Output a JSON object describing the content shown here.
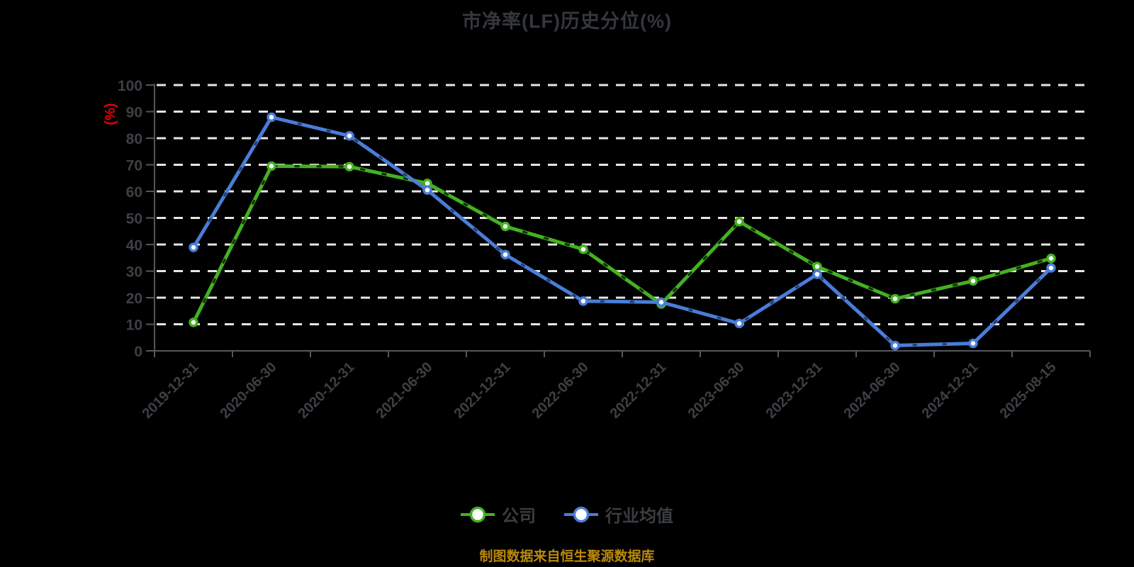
{
  "page": {
    "background_color": "#000000"
  },
  "chart": {
    "title": "市净率(LF)历史分位(%)",
    "title_color": "#34373c",
    "footer_note": "制图数据来自恒生聚源数据库",
    "footer_color": "#b9890e"
  },
  "chart_data": {
    "type": "line",
    "title": "市净率(LF)历史分位(%)",
    "xlabel": "",
    "ylabel": "(%)",
    "ylabel_color": "#e60000",
    "ylim": [
      0,
      100
    ],
    "yticks": [
      0,
      10,
      20,
      30,
      40,
      50,
      60,
      70,
      80,
      90,
      100
    ],
    "grid": "horizontal-dashed-white",
    "gridline_color": "#e6e6e6",
    "axis_color": "#55585b",
    "tick_label_color": "#3d4044",
    "legend_position": "bottom",
    "marker": "white-filled-circle",
    "categories": [
      "2019-12-31",
      "2020-06-30",
      "2020-12-31",
      "2021-06-30",
      "2021-12-31",
      "2022-06-30",
      "2022-12-31",
      "2023-06-30",
      "2023-12-31",
      "2024-06-30",
      "2024-12-31",
      "2025-08-15"
    ],
    "series": [
      {
        "name": "公司",
        "color": "#44b121",
        "values": [
          10.7,
          69.5,
          69.3,
          63.0,
          46.8,
          38.2,
          17.6,
          48.6,
          31.7,
          19.6,
          26.3,
          34.8
        ]
      },
      {
        "name": "行业均值",
        "color": "#4a7dd9",
        "values": [
          38.9,
          87.9,
          80.9,
          60.5,
          36.2,
          18.7,
          18.3,
          10.3,
          28.8,
          2.0,
          2.8,
          31.2
        ]
      }
    ]
  }
}
